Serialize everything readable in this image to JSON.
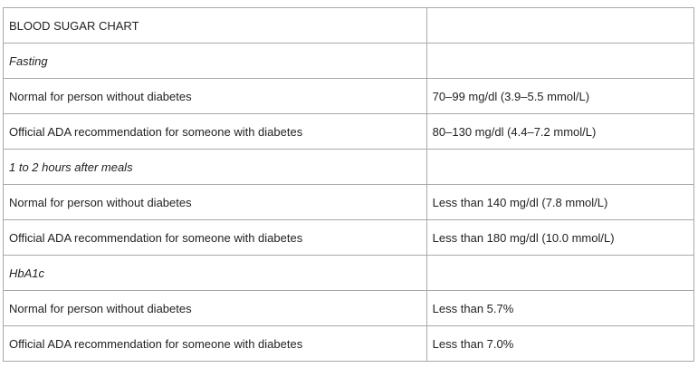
{
  "table": {
    "title": "BLOOD SUGAR CHART",
    "sections": [
      {
        "heading": "Fasting",
        "rows": [
          {
            "label": "Normal for person without diabetes",
            "value": "70–99 mg/dl (3.9–5.5 mmol/L)"
          },
          {
            "label": "Official ADA recommendation for someone with diabetes",
            "value": "80–130 mg/dl (4.4–7.2 mmol/L)"
          }
        ]
      },
      {
        "heading": "1 to 2 hours after meals",
        "rows": [
          {
            "label": "Normal for person without diabetes",
            "value": "Less than 140 mg/dl (7.8 mmol/L)"
          },
          {
            "label": "Official ADA recommendation for someone with diabetes",
            "value": "Less than 180 mg/dl (10.0 mmol/L)"
          }
        ]
      },
      {
        "heading": "HbA1c",
        "rows": [
          {
            "label": "Normal for person without diabetes",
            "value": "Less than 5.7%"
          },
          {
            "label": "Official ADA recommendation for someone with diabetes",
            "value": "Less than 7.0%"
          }
        ]
      }
    ]
  }
}
